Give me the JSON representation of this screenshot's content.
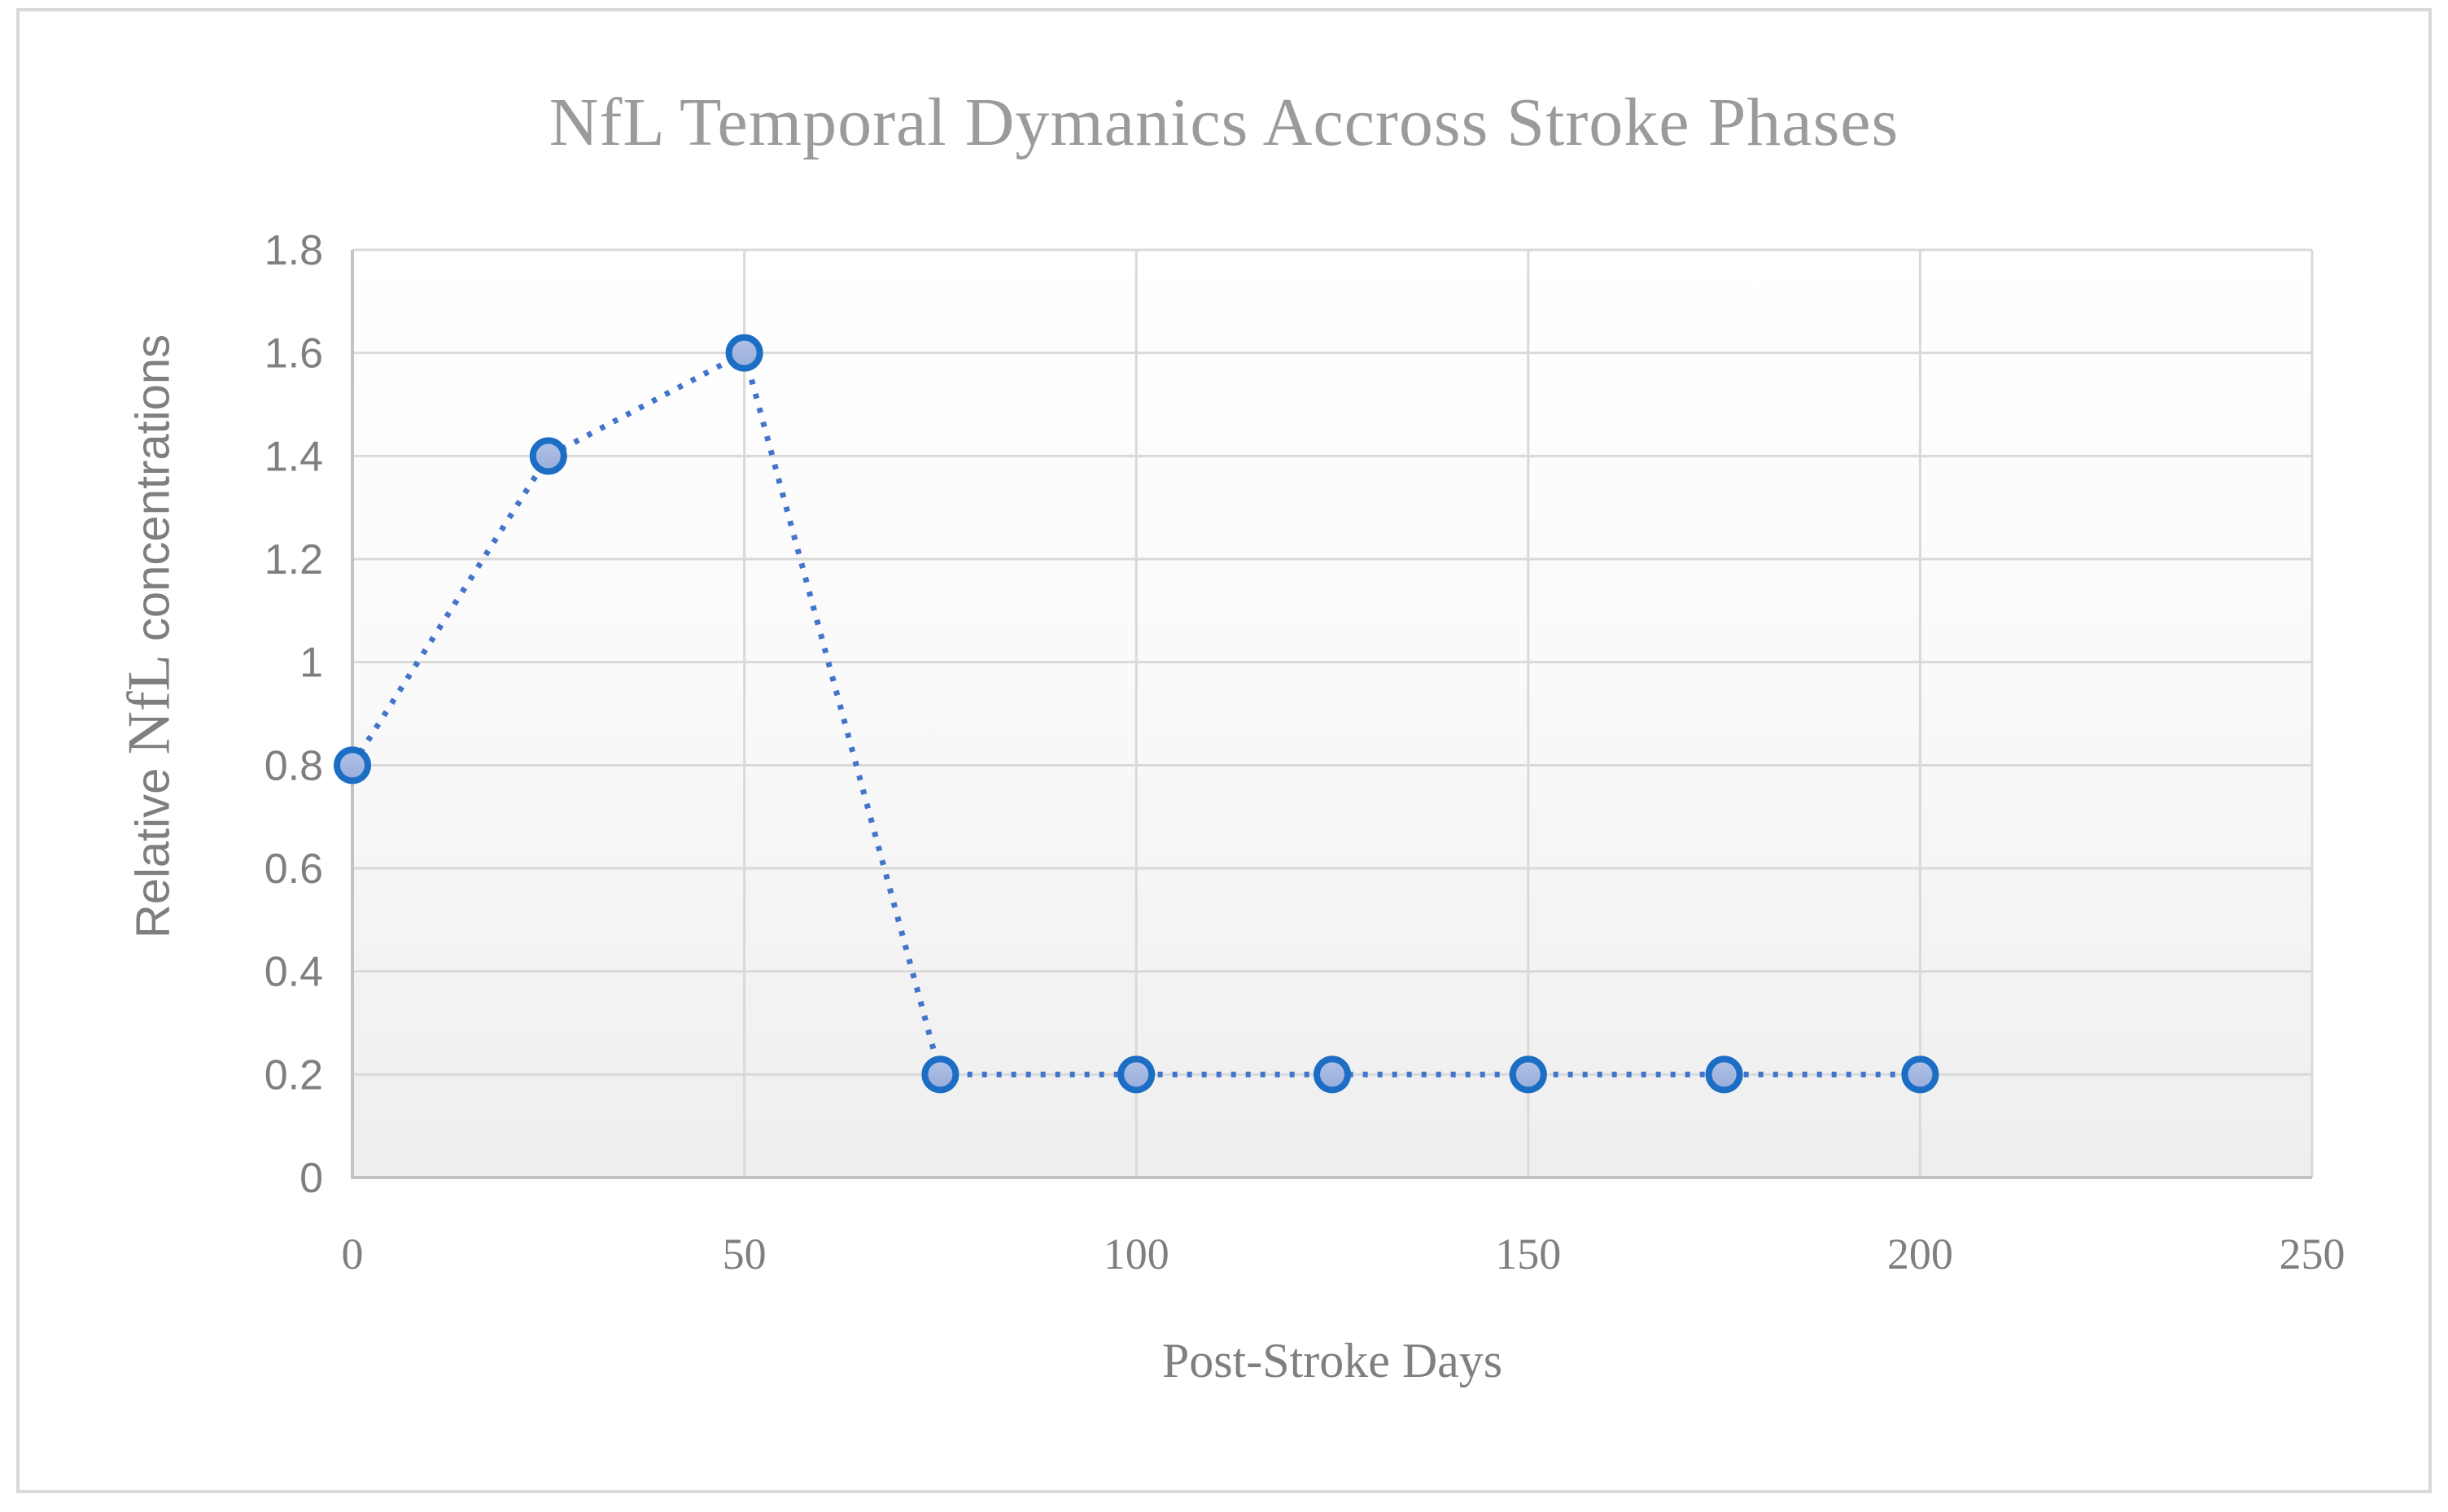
{
  "figure": {
    "border_color": "#D9D9D9",
    "background_color": "#FFFFFF"
  },
  "chart_data": {
    "type": "line",
    "title": "NfL Temporal Dymanics Accross Stroke Phases",
    "xlabel": "Post-Stroke Days",
    "ylabel": "Relative NfL concentrations",
    "ylabel_parts": {
      "prefix": "Relative ",
      "emph": "NfL",
      "suffix": " concentrations"
    },
    "xlim": [
      0,
      250
    ],
    "ylim": [
      0,
      1.8
    ],
    "xticks": [
      "0",
      "50",
      "100",
      "150",
      "200",
      "250"
    ],
    "yticks": [
      "0",
      "0.2",
      "0.4",
      "0.6",
      "0.8",
      "1",
      "1.2",
      "1.4",
      "1.6",
      "1.8"
    ],
    "grid": true,
    "legend": "none",
    "line_style": "dotted",
    "marker": "circle",
    "series": [
      {
        "x": [
          0,
          25,
          50,
          75,
          100,
          125,
          150,
          175,
          200
        ],
        "y": [
          0.8,
          1.4,
          1.6,
          0.2,
          0.2,
          0.2,
          0.2,
          0.2,
          0.2
        ]
      }
    ],
    "colors": {
      "line": "#4374CB",
      "marker_stroke": "#1B6EC4",
      "marker_fill_top": "#B2C2E7",
      "marker_fill_bottom": "#97ADDB",
      "gridline": "#D9D9D9",
      "axis_line": "#C3C3C3",
      "tick_text": "#7F7F7F",
      "title_text": "#9B9B9B",
      "axis_title_text": "#7F7F7F",
      "plot_bg_top": "#FFFFFF",
      "plot_bg_bottom": "#EEEEEE"
    }
  }
}
